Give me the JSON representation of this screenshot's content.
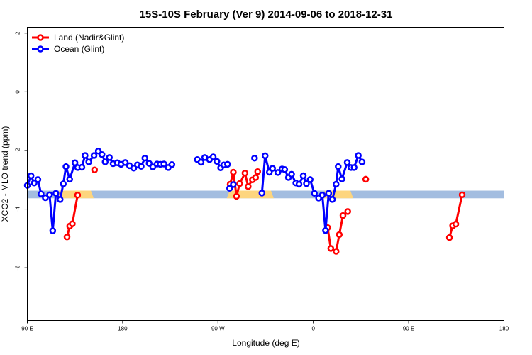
{
  "chart_data": {
    "type": "line",
    "title": "15S-10S February (Ver 9)   2014-09-06 to 2018-12-31",
    "xlabel": "Longitude (deg E)",
    "ylabel": "XCO2 - MLO trend (ppm)",
    "xlim": [
      90,
      450
    ],
    "ylim": [
      -7.8,
      2.2
    ],
    "grid": false,
    "legend_position": "top-left",
    "x_ticks": [
      {
        "value": 90,
        "label": "90 E"
      },
      {
        "value": 180,
        "label": "180"
      },
      {
        "value": 270,
        "label": "90 W"
      },
      {
        "value": 360,
        "label": "0"
      },
      {
        "value": 450,
        "label": "90 E"
      },
      {
        "value": 540,
        "label": "180"
      }
    ],
    "y_ticks": [
      {
        "value": 2,
        "label": "2"
      },
      {
        "value": 0,
        "label": "0"
      },
      {
        "value": -2,
        "label": "-2"
      },
      {
        "value": -4,
        "label": "-4"
      },
      {
        "value": -6,
        "label": "-6"
      }
    ],
    "x_axis_display_range": [
      90,
      540
    ],
    "band": {
      "y_range": [
        -3.63,
        -3.37
      ],
      "ocean_color": "#a3bde0",
      "land_color": "#fdd57e"
    },
    "band_land_segments": [
      [
        120,
        150
      ],
      [
        281,
        320
      ],
      [
        371,
        395
      ]
    ],
    "series": [
      {
        "name": "Land (Nadir&Glint)",
        "color": "#ff0000",
        "points": [
          [
            127.5,
            -4.95
          ],
          [
            130,
            -4.58
          ],
          [
            132.5,
            -4.5
          ],
          [
            137.5,
            -3.52
          ],
          [
            153.5,
            -2.66
          ],
          [
            281.5,
            -3.15
          ],
          [
            284.5,
            -2.74
          ],
          [
            287.5,
            -3.56
          ],
          [
            290.5,
            -3.13
          ],
          [
            295.5,
            -2.77
          ],
          [
            298.5,
            -3.23
          ],
          [
            302.5,
            -3.0
          ],
          [
            305.5,
            -2.92
          ],
          [
            307.5,
            -2.72
          ],
          [
            373.5,
            -4.63
          ],
          [
            376.5,
            -5.34
          ],
          [
            381.5,
            -5.44
          ],
          [
            384.5,
            -4.87
          ],
          [
            388,
            -4.22
          ],
          [
            392.5,
            -4.08
          ],
          [
            409.5,
            -2.98
          ],
          [
            488.5,
            -4.97
          ],
          [
            491.5,
            -4.57
          ],
          [
            494.5,
            -4.51
          ],
          [
            500.5,
            -3.51
          ]
        ],
        "breaks_after_index": [
          3,
          4,
          13,
          19,
          20
        ]
      },
      {
        "name": "Ocean (Glint)",
        "color": "#0000ff",
        "points": [
          [
            90,
            -3.19
          ],
          [
            93.5,
            -2.86
          ],
          [
            96.5,
            -3.11
          ],
          [
            100,
            -2.99
          ],
          [
            103,
            -3.48
          ],
          [
            107,
            -3.61
          ],
          [
            111,
            -3.51
          ],
          [
            114,
            -4.74
          ],
          [
            117,
            -3.46
          ],
          [
            121,
            -3.67
          ],
          [
            124,
            -3.14
          ],
          [
            126.5,
            -2.55
          ],
          [
            130,
            -2.98
          ],
          [
            135,
            -2.42
          ],
          [
            137.5,
            -2.58
          ],
          [
            141.5,
            -2.57
          ],
          [
            144.5,
            -2.17
          ],
          [
            148,
            -2.39
          ],
          [
            153,
            -2.17
          ],
          [
            157,
            -2.02
          ],
          [
            160.5,
            -2.14
          ],
          [
            163.5,
            -2.39
          ],
          [
            167.5,
            -2.24
          ],
          [
            171,
            -2.45
          ],
          [
            175,
            -2.42
          ],
          [
            178.5,
            -2.47
          ],
          [
            182.5,
            -2.41
          ],
          [
            186.5,
            -2.52
          ],
          [
            190.5,
            -2.6
          ],
          [
            194,
            -2.49
          ],
          [
            197.5,
            -2.54
          ],
          [
            201,
            -2.26
          ],
          [
            205,
            -2.44
          ],
          [
            208.5,
            -2.56
          ],
          [
            212.5,
            -2.46
          ],
          [
            215.5,
            -2.47
          ],
          [
            219,
            -2.46
          ],
          [
            223,
            -2.58
          ],
          [
            226.5,
            -2.48
          ],
          [
            250.5,
            -2.31
          ],
          [
            254,
            -2.4
          ],
          [
            257.5,
            -2.24
          ],
          [
            262,
            -2.31
          ],
          [
            265.5,
            -2.22
          ],
          [
            269,
            -2.37
          ],
          [
            272.5,
            -2.59
          ],
          [
            275.5,
            -2.49
          ],
          [
            279,
            -2.47
          ],
          [
            281,
            -3.29
          ],
          [
            284.5,
            -3.16
          ],
          [
            304.5,
            -2.26
          ],
          [
            311.5,
            -3.45
          ],
          [
            314.5,
            -2.18
          ],
          [
            318.5,
            -2.74
          ],
          [
            321.5,
            -2.61
          ],
          [
            326.5,
            -2.75
          ],
          [
            330.5,
            -2.63
          ],
          [
            333,
            -2.65
          ],
          [
            336.5,
            -2.92
          ],
          [
            339.5,
            -2.81
          ],
          [
            343.5,
            -3.11
          ],
          [
            346.5,
            -3.15
          ],
          [
            350.5,
            -2.86
          ],
          [
            353.5,
            -3.13
          ],
          [
            357,
            -2.99
          ],
          [
            361,
            -3.46
          ],
          [
            365,
            -3.62
          ],
          [
            368.5,
            -3.52
          ],
          [
            371.5,
            -4.73
          ],
          [
            374.5,
            -3.46
          ],
          [
            378,
            -3.67
          ],
          [
            381.5,
            -3.15
          ],
          [
            383.5,
            -2.55
          ],
          [
            387,
            -2.97
          ],
          [
            392,
            -2.41
          ],
          [
            395.5,
            -2.58
          ],
          [
            398.5,
            -2.58
          ],
          [
            402.5,
            -2.17
          ],
          [
            406,
            -2.39
          ]
        ],
        "breaks_after_index": [
          38,
          47,
          49,
          50
        ]
      }
    ]
  }
}
